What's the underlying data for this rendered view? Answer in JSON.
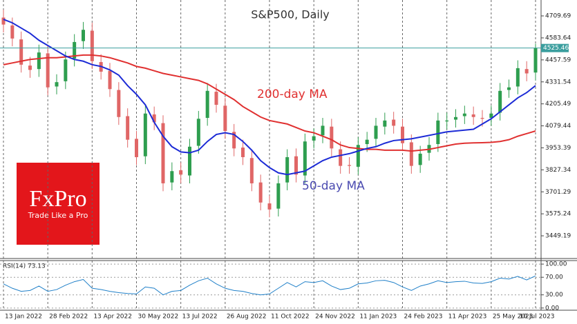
{
  "chart_data": [
    {
      "type": "candlestick",
      "title": "S&P500, Daily",
      "categories": [
        "13 Jan 2022",
        null,
        null,
        null,
        null,
        "28 Feb 2022",
        null,
        null,
        null,
        null,
        "13 Apr 2022",
        null,
        null,
        null,
        null,
        "30 May 2022",
        null,
        null,
        null,
        null,
        "13 Jul 2022",
        null,
        null,
        null,
        null,
        "26 Aug 2022",
        null,
        null,
        null,
        null,
        "11 Oct 2022",
        null,
        null,
        null,
        null,
        "24 Nov 2022",
        null,
        null,
        null,
        null,
        "11 Jan 2023",
        null,
        null,
        null,
        null,
        "24 Feb 2023",
        null,
        null,
        null,
        null,
        "11 Apr 2023",
        null,
        null,
        null,
        null,
        "25 May 2023",
        null,
        null,
        null,
        null,
        "10 Jul 2023"
      ],
      "open": [
        4700,
        4655,
        4575,
        4425,
        4405,
        4495,
        4305,
        4335,
        4465,
        4565,
        4625,
        4445,
        4395,
        4285,
        4135,
        4005,
        3905,
        4145,
        4095,
        3755,
        3825,
        3795,
        3965,
        4125,
        4275,
        4195,
        4045,
        3955,
        3895,
        3755,
        3635,
        3605,
        3755,
        3905,
        3795,
        3995,
        4025,
        4075,
        3945,
        3855,
        3845,
        3975,
        4005,
        4075,
        4115,
        4075,
        3985,
        3855,
        3925,
        3975,
        4105,
        4115,
        4135,
        4145,
        4125,
        4125,
        4155,
        4285,
        4305,
        4405,
        4385
      ],
      "high": [
        4745,
        4700,
        4620,
        4475,
        4545,
        4540,
        4375,
        4505,
        4605,
        4675,
        4670,
        4490,
        4440,
        4330,
        4180,
        4050,
        4195,
        4190,
        4140,
        3870,
        3870,
        4005,
        4165,
        4325,
        4320,
        4240,
        4090,
        4000,
        3940,
        3800,
        3680,
        3795,
        3945,
        3950,
        4035,
        4065,
        4125,
        4120,
        3990,
        3900,
        4015,
        4045,
        4125,
        4155,
        4160,
        4120,
        4030,
        3965,
        4015,
        4155,
        4155,
        4175,
        4195,
        4190,
        4170,
        4195,
        4325,
        4345,
        4455,
        4450,
        4550
      ],
      "low": [
        4615,
        4535,
        4385,
        4355,
        4360,
        4255,
        4260,
        4290,
        4420,
        4520,
        4405,
        4345,
        4245,
        4085,
        3955,
        3855,
        3860,
        4055,
        3705,
        3710,
        3750,
        3750,
        3920,
        4080,
        4155,
        4005,
        3905,
        3855,
        3705,
        3595,
        3555,
        3560,
        3710,
        3755,
        3750,
        3950,
        3980,
        3905,
        3805,
        3805,
        3800,
        3930,
        3960,
        4030,
        4035,
        3935,
        3805,
        3810,
        3880,
        3930,
        4060,
        4070,
        4090,
        4085,
        4075,
        4080,
        4110,
        4240,
        4260,
        4335,
        4340
      ],
      "close": [
        4660,
        4580,
        4430,
        4400,
        4500,
        4300,
        4330,
        4460,
        4560,
        4630,
        4450,
        4390,
        4290,
        4130,
        4000,
        3900,
        4150,
        4100,
        3750,
        3820,
        3800,
        3960,
        4120,
        4280,
        4200,
        4050,
        3950,
        3900,
        3750,
        3640,
        3600,
        3750,
        3900,
        3800,
        3990,
        4020,
        4080,
        3950,
        3850,
        3850,
        3970,
        4000,
        4080,
        4110,
        4080,
        3980,
        3850,
        3920,
        3970,
        4110,
        4110,
        4130,
        4150,
        4130,
        4120,
        4150,
        4280,
        4300,
        4410,
        4380,
        4525.46
      ],
      "up_color": "#2e9e4f",
      "down_color": "#e06666",
      "price_line_color": "#3a9e9e",
      "overlays": [
        {
          "name": "200-day MA",
          "color": "#e03030",
          "values": [
            4430,
            4440,
            4450,
            4460,
            4465,
            4470,
            4470,
            4475,
            4480,
            4485,
            4485,
            4480,
            4470,
            4455,
            4440,
            4420,
            4410,
            4395,
            4380,
            4370,
            4360,
            4350,
            4340,
            4320,
            4290,
            4260,
            4230,
            4190,
            4160,
            4130,
            4110,
            4100,
            4090,
            4070,
            4050,
            4040,
            4020,
            4000,
            3970,
            3955,
            3950,
            3945,
            3945,
            3940,
            3940,
            3940,
            3935,
            3940,
            3945,
            3955,
            3965,
            3975,
            3980,
            3982,
            3983,
            3985,
            3990,
            4000,
            4020,
            4035,
            4050
          ]
        },
        {
          "name": "50-day MA",
          "color": "#1c2bd6",
          "values": [
            4690,
            4670,
            4640,
            4610,
            4570,
            4540,
            4510,
            4480,
            4460,
            4450,
            4430,
            4420,
            4400,
            4370,
            4310,
            4260,
            4200,
            4100,
            4020,
            3960,
            3930,
            3925,
            3940,
            3990,
            4030,
            4040,
            4030,
            3990,
            3940,
            3880,
            3840,
            3810,
            3800,
            3810,
            3820,
            3850,
            3880,
            3900,
            3910,
            3920,
            3935,
            3950,
            3960,
            3980,
            3995,
            4000,
            4005,
            4015,
            4025,
            4035,
            4045,
            4050,
            4055,
            4060,
            4090,
            4120,
            4160,
            4200,
            4240,
            4270,
            4310
          ]
        }
      ],
      "ylim": [
        3327,
        4781
      ],
      "yticks": [
        4709.69,
        4583.64,
        4457.59,
        4331.54,
        4205.49,
        4079.44,
        3953.39,
        3827.34,
        3701.29,
        3575.24,
        3449.19
      ]
    },
    {
      "type": "line",
      "title": "RSI(14) 73.13",
      "series": [
        {
          "color": "#1e7fc8",
          "values": [
            55,
            45,
            38,
            40,
            50,
            38,
            42,
            52,
            60,
            65,
            45,
            42,
            38,
            35,
            33,
            32,
            48,
            45,
            30,
            38,
            40,
            52,
            62,
            68,
            55,
            45,
            40,
            38,
            33,
            30,
            32,
            45,
            58,
            48,
            60,
            58,
            62,
            50,
            42,
            45,
            55,
            57,
            62,
            63,
            58,
            48,
            40,
            50,
            55,
            62,
            58,
            60,
            61,
            57,
            56,
            60,
            68,
            66,
            72,
            64,
            73.13
          ]
        }
      ],
      "ylim": [
        -5,
        108
      ],
      "yticks": [
        {
          "value": 100,
          "label": "100.00"
        },
        {
          "value": 70,
          "label": "70.00"
        },
        {
          "value": 30,
          "label": "30.00"
        },
        {
          "value": 0,
          "label": "0.00"
        }
      ]
    }
  ],
  "brand": {
    "name": "FxPro",
    "tagline": "Trade Like a Pro"
  }
}
